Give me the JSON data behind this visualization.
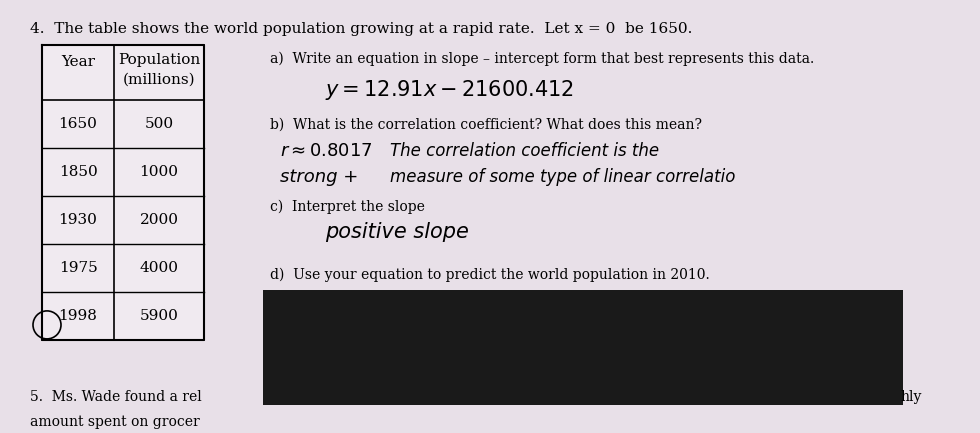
{
  "title": "4.  The table shows the world population growing at a rapid rate.  Let x = 0  be 1650.",
  "table_headers": [
    "Year",
    "Population\n(millions)"
  ],
  "table_rows": [
    [
      "1650",
      "500"
    ],
    [
      "1850",
      "1000"
    ],
    [
      "1930",
      "2000"
    ],
    [
      "1975",
      "4000"
    ],
    [
      "1998",
      "5900"
    ]
  ],
  "part_a_label": "a)  Write an equation in slope – intercept form that best represents this data.",
  "part_a_answer": "y=12.91x−21600.412",
  "part_b_label": "b)  What is the correlation coefficient? What does this mean?",
  "part_b_answer_left": "r≈0.8017",
  "part_b_answer_right": "The correlation coefficient is the",
  "part_b_cont_left": "strong +",
  "part_b_cont_right": "measure of some type of linear correlatio",
  "part_c_label": "c)  Interpret the slope",
  "part_c_answer": "positive slope",
  "part_d_label": "d)  Use your equation to predict the world population in 2010.",
  "part_5_label": "5.  Ms. Wade found a rel",
  "part_5_cont": "amount spent on grocer",
  "part_5_right": "hly",
  "bg_color": "#e8e0e8",
  "table_bg": "#f0eaf0",
  "dark_rect_color": "#1a1a1a",
  "font_size_title": 11,
  "font_size_table": 11,
  "font_size_body": 10,
  "font_size_handwriting": 13
}
